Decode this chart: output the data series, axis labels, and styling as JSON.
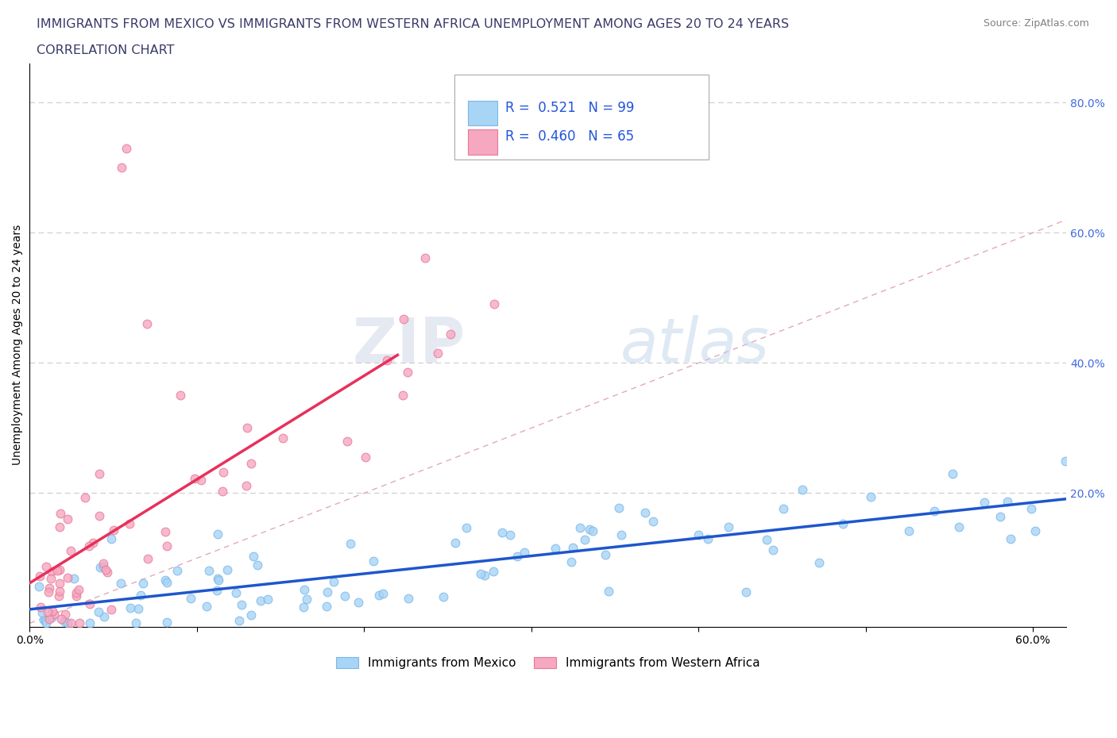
{
  "title_line1": "IMMIGRANTS FROM MEXICO VS IMMIGRANTS FROM WESTERN AFRICA UNEMPLOYMENT AMONG AGES 20 TO 24 YEARS",
  "title_line2": "CORRELATION CHART",
  "ylabel": "Unemployment Among Ages 20 to 24 years",
  "source_text": "Source: ZipAtlas.com",
  "watermark_zip": "ZIP",
  "watermark_atlas": "atlas",
  "xlim": [
    0.0,
    0.62
  ],
  "ylim": [
    -0.005,
    0.86
  ],
  "xtick_positions": [
    0.0,
    0.1,
    0.2,
    0.3,
    0.4,
    0.5,
    0.6
  ],
  "xticklabels": [
    "0.0%",
    "",
    "",
    "",
    "",
    "",
    "60.0%"
  ],
  "ytick_positions": [
    0.0,
    0.2,
    0.4,
    0.6,
    0.8
  ],
  "yticklabels_right": [
    "",
    "20.0%",
    "40.0%",
    "60.0%",
    "80.0%"
  ],
  "mexico_color": "#A8D4F5",
  "mexico_edge": "#7AB8E8",
  "africa_color": "#F5A8C0",
  "africa_edge": "#E87898",
  "trend_mexico_color": "#1E56CC",
  "trend_africa_color": "#E8305A",
  "diag_color": "#E0A0B0",
  "legend_R_mexico": "0.521",
  "legend_N_mexico": "99",
  "legend_R_africa": "0.460",
  "legend_N_africa": "65",
  "legend_label_mexico": "Immigrants from Mexico",
  "legend_label_africa": "Immigrants from Western Africa",
  "title_color": "#3A3A6A",
  "title_fontsize": 11.5,
  "axis_label_fontsize": 10,
  "tick_fontsize": 10,
  "legend_fontsize": 12,
  "background_color": "#FFFFFF",
  "grid_color": "#CCCCCC",
  "right_tick_color": "#4169E1"
}
